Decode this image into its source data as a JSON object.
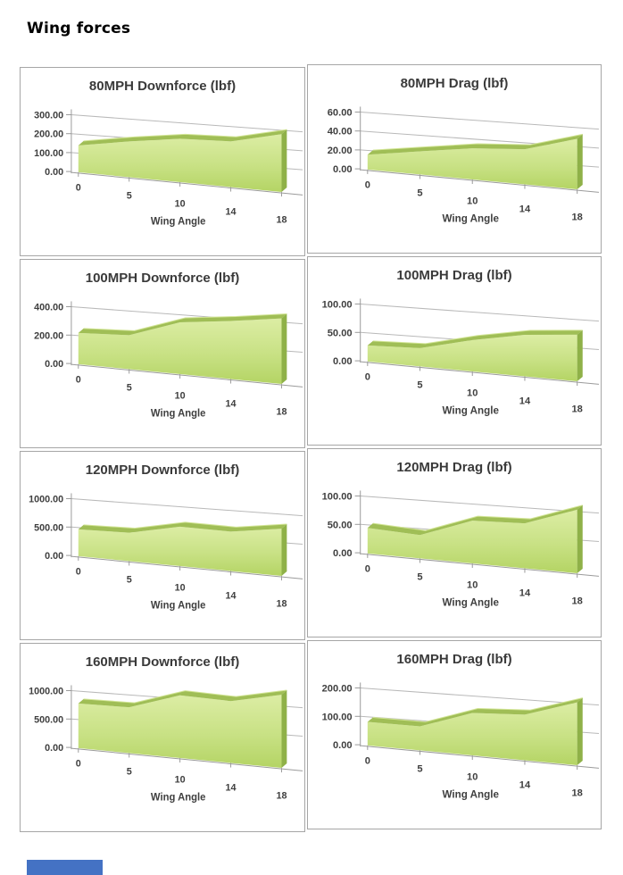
{
  "page": {
    "title": "Wing forces"
  },
  "x_axis": {
    "label": "Wing Angle",
    "tick_labels": [
      "0",
      "5",
      "10",
      "14",
      "18"
    ]
  },
  "colors": {
    "area_light": "#dceda4",
    "area_mid": "#c8e184",
    "area_dark": "#b4d464",
    "area_band": "#a0be56",
    "area_band_highlight": "#d2e596",
    "area_side": "#8fb148",
    "grid": "#b9b9b9",
    "axis": "#9b9b9b",
    "box_border": "#a6a6a6",
    "text": "#3f3f3f",
    "partial_blue": "#4472c4"
  },
  "chart_data": [
    {
      "type": "area",
      "title": "80MPH Downforce (lbf)",
      "xlabel": "Wing Angle",
      "categories": [
        0,
        5,
        10,
        14,
        18
      ],
      "values": [
        135,
        170,
        195,
        195,
        235
      ],
      "ylim": [
        0,
        300
      ],
      "y_tick_labels": [
        "300.00",
        "200.00",
        "100.00",
        "0.00"
      ],
      "grid": true,
      "legend": false
    },
    {
      "type": "area",
      "title": "80MPH Drag (lbf)",
      "xlabel": "Wing Angle",
      "categories": [
        0,
        5,
        10,
        14,
        18
      ],
      "values": [
        15,
        22,
        28,
        30,
        41
      ],
      "ylim": [
        0,
        60
      ],
      "y_tick_labels": [
        "60.00",
        "40.00",
        "20.00",
        "0.00"
      ],
      "grid": true,
      "legend": false
    },
    {
      "type": "area",
      "title": "100MPH Downforce (lbf)",
      "xlabel": "Wing Angle",
      "categories": [
        0,
        5,
        10,
        14,
        18
      ],
      "values": [
        210,
        215,
        310,
        330,
        355
      ],
      "ylim": [
        0,
        400
      ],
      "y_tick_labels": [
        "400.00",
        "200.00",
        "0.00"
      ],
      "grid": true,
      "legend": false
    },
    {
      "type": "area",
      "title": "100MPH Drag (lbf)",
      "xlabel": "Wing Angle",
      "categories": [
        0,
        5,
        10,
        14,
        18
      ],
      "values": [
        27,
        29,
        47,
        59,
        63
      ],
      "ylim": [
        0,
        100
      ],
      "y_tick_labels": [
        "100.00",
        "50.00",
        "0.00"
      ],
      "grid": true,
      "legend": false
    },
    {
      "type": "area",
      "title": "120MPH Downforce (lbf)",
      "xlabel": "Wing Angle",
      "categories": [
        0,
        5,
        10,
        14,
        18
      ],
      "values": [
        450,
        450,
        590,
        560,
        640
      ],
      "ylim": [
        0,
        1000
      ],
      "y_tick_labels": [
        "1000.00",
        "500.00",
        "0.00"
      ],
      "grid": true,
      "legend": false
    },
    {
      "type": "area",
      "title": "120MPH Drag (lbf)",
      "xlabel": "Wing Angle",
      "categories": [
        0,
        5,
        10,
        14,
        18
      ],
      "values": [
        43,
        37,
        64,
        64,
        86
      ],
      "ylim": [
        0,
        100
      ],
      "y_tick_labels": [
        "100.00",
        "50.00",
        "0.00"
      ],
      "grid": true,
      "legend": false
    },
    {
      "type": "area",
      "title": "160MPH Downforce (lbf)",
      "xlabel": "Wing Angle",
      "categories": [
        0,
        5,
        10,
        14,
        18
      ],
      "values": [
        750,
        725,
        940,
        880,
        990
      ],
      "ylim": [
        0,
        1000
      ],
      "y_tick_labels": [
        "1000.00",
        "500.00",
        "0.00"
      ],
      "grid": true,
      "legend": false
    },
    {
      "type": "area",
      "title": "160MPH Drag (lbf)",
      "xlabel": "Wing Angle",
      "categories": [
        0,
        5,
        10,
        14,
        18
      ],
      "values": [
        79,
        76,
        127,
        130,
        170
      ],
      "ylim": [
        0,
        200
      ],
      "y_tick_labels": [
        "200.00",
        "100.00",
        "0.00"
      ],
      "grid": true,
      "legend": false
    }
  ]
}
